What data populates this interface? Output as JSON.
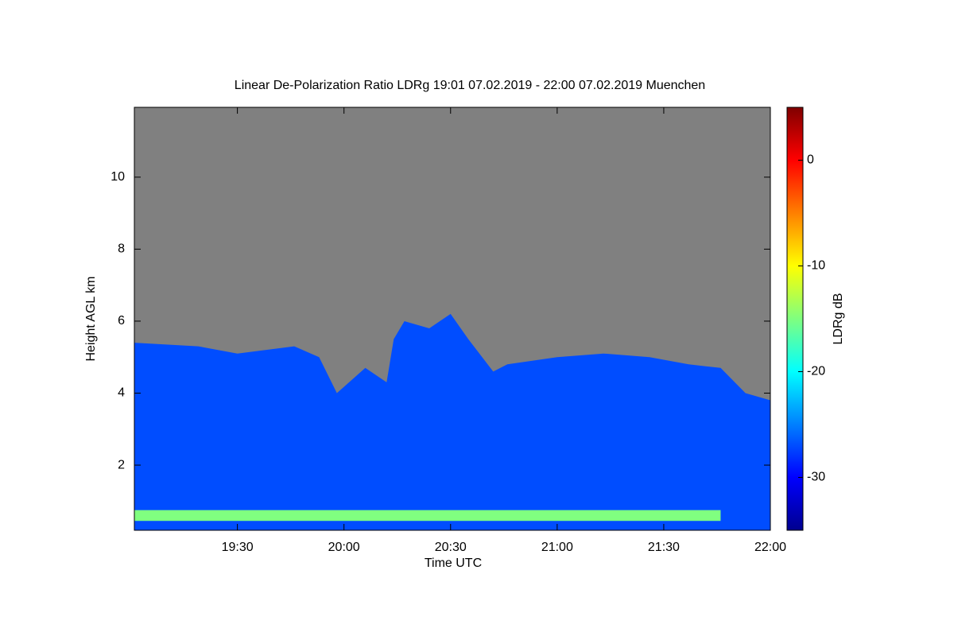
{
  "chart_data": {
    "type": "lidar-profile",
    "title": "Linear De-Polarization Ratio LDRg   19:01 07.02.2019 - 22:00 07.02.2019 Muenchen",
    "x_label": "Time UTC",
    "y_label": "Height AGL km",
    "colorbar_label": "LDRg dB",
    "xlim": [
      1141,
      1320
    ],
    "xticks": [
      {
        "value": 1170,
        "label": "19:30"
      },
      {
        "value": 1200,
        "label": "20:00"
      },
      {
        "value": 1230,
        "label": "20:30"
      },
      {
        "value": 1260,
        "label": "21:00"
      },
      {
        "value": 1290,
        "label": "21:30"
      },
      {
        "value": 1320,
        "label": "22:00"
      }
    ],
    "ylim": [
      0.19,
      11.94
    ],
    "yticks": [
      2,
      4,
      6,
      8,
      10
    ],
    "zlim": [
      -35,
      5
    ],
    "zticks": [
      -30,
      -20,
      -10,
      0
    ],
    "background_color": "#808080",
    "x": [
      1141,
      1159,
      1170,
      1186,
      1193,
      1198,
      1206,
      1212,
      1214,
      1217,
      1224,
      1230,
      1235,
      1242,
      1246,
      1260,
      1273,
      1286,
      1297,
      1306,
      1313,
      1320
    ],
    "cloud_top": [
      5.4,
      5.3,
      5.1,
      5.3,
      5.0,
      4.0,
      4.7,
      4.3,
      5.5,
      6.0,
      5.8,
      6.2,
      5.5,
      4.6,
      4.8,
      5.0,
      5.1,
      5.0,
      4.8,
      4.7,
      4.0,
      3.8
    ],
    "cloud_ldr": -27,
    "surface_layer": {
      "start": 1141,
      "end": 1306,
      "bottom": 0.45,
      "top": 0.75,
      "ldr": -15
    }
  }
}
